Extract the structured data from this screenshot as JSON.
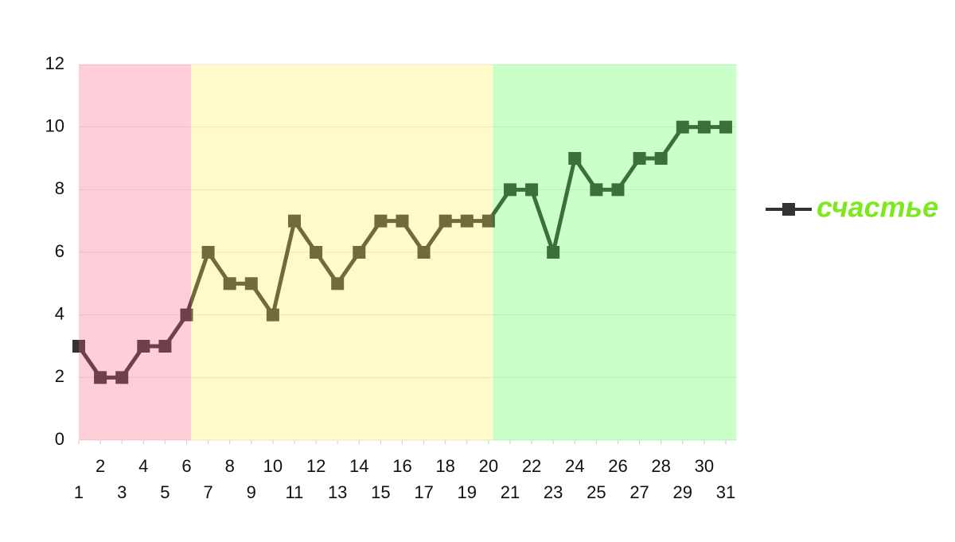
{
  "chart_data": {
    "type": "line",
    "x": [
      1,
      2,
      3,
      4,
      5,
      6,
      7,
      8,
      9,
      10,
      11,
      12,
      13,
      14,
      15,
      16,
      17,
      18,
      19,
      20,
      21,
      22,
      23,
      24,
      25,
      26,
      27,
      28,
      29,
      30,
      31
    ],
    "series": [
      {
        "name": "счастье",
        "color": "#333333",
        "values": [
          3,
          2,
          2,
          3,
          3,
          4,
          6,
          5,
          5,
          4,
          7,
          6,
          5,
          6,
          7,
          7,
          6,
          7,
          7,
          7,
          8,
          8,
          6,
          9,
          8,
          8,
          9,
          9,
          10,
          10,
          10
        ]
      }
    ],
    "xlim": [
      1,
      31.5
    ],
    "ylim": [
      0,
      12
    ],
    "xticks": [
      1,
      2,
      3,
      4,
      5,
      6,
      7,
      8,
      9,
      10,
      11,
      12,
      13,
      14,
      15,
      16,
      17,
      18,
      19,
      20,
      21,
      22,
      23,
      24,
      25,
      26,
      27,
      28,
      29,
      30,
      31
    ],
    "yticks": [
      0,
      2,
      4,
      6,
      8,
      10,
      12
    ],
    "bands": [
      {
        "from": 1,
        "to": 6.2,
        "color": "#ff6080"
      },
      {
        "from": 6.2,
        "to": 20.2,
        "color": "#fff050"
      },
      {
        "from": 20.2,
        "to": 31.5,
        "color": "#50ff50"
      }
    ],
    "grid": true,
    "legend": "right",
    "legend_text_color": "#7ee81e"
  }
}
